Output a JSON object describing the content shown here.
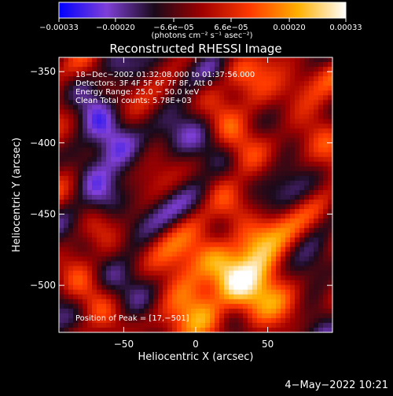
{
  "chart_data": {
    "type": "heatmap",
    "title": "Reconstructed RHESSI Image",
    "xlabel": "Heliocentric X (arcsec)",
    "ylabel": "Heliocentric Y (arcsec)",
    "xlim": [
      -95,
      95
    ],
    "ylim": [
      -533,
      -340
    ],
    "x_ticks": [
      {
        "value": -50,
        "label": "−50"
      },
      {
        "value": 0,
        "label": "0"
      },
      {
        "value": 50,
        "label": "50"
      }
    ],
    "y_ticks": [
      {
        "value": -350,
        "label": "−350"
      },
      {
        "value": -400,
        "label": "−400"
      },
      {
        "value": -450,
        "label": "−450"
      },
      {
        "value": -500,
        "label": "−500"
      }
    ],
    "colorbar": {
      "range": [
        -0.00033,
        0.00033
      ],
      "unit_label": "(photons cm⁻² s⁻¹ asec⁻²)",
      "ticks": [
        {
          "value": -0.00033,
          "label": "−0.00033"
        },
        {
          "value": -0.0002,
          "label": "−0.00020"
        },
        {
          "value": -6.6e-05,
          "label": "−6.6e−05"
        },
        {
          "value": 6.6e-05,
          "label": "6.6e−05"
        },
        {
          "value": 0.0002,
          "label": "0.00020"
        },
        {
          "value": 0.00033,
          "label": "0.00033"
        }
      ],
      "colors": [
        "#0000ff",
        "#7f3fd8",
        "#1a0a1a",
        "#a00000",
        "#ff3a00",
        "#ffb000",
        "#ffffff"
      ]
    },
    "annotations": [
      "18−Dec−2002 01:32:08.000 to 01:37:56.000",
      "Detectors: 3F 4F 5F 6F 7F 8F, Att 0",
      "Energy Range: 25.0 − 50.0 keV",
      "Clean     Total counts: 5.78E+03"
    ],
    "peak": {
      "x": 17,
      "y": -501,
      "label": "Position of Peak = [17,−501]"
    }
  },
  "footer": {
    "timestamp": "4−May−2022 10:21"
  }
}
